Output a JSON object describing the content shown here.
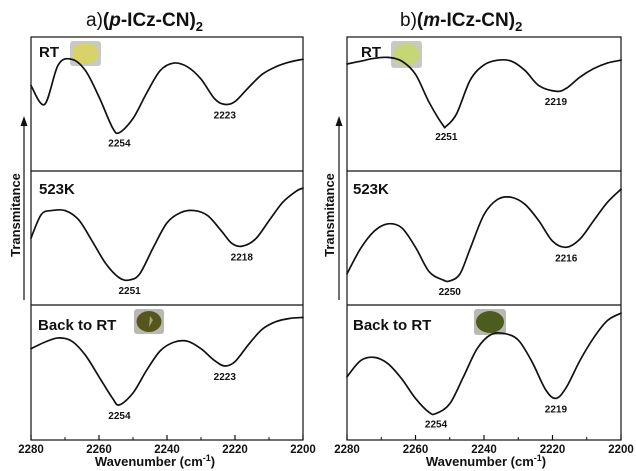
{
  "panels": [
    {
      "letter": "a)",
      "title_prefix": "(",
      "title_italic": "p",
      "title_main": "-ICz-CN)",
      "title_sub": "2"
    },
    {
      "letter": "b)",
      "title_prefix": "(",
      "title_italic": "m",
      "title_main": "-ICz-CN)",
      "title_sub": "2"
    }
  ],
  "y_axis_label": "Transmitance",
  "x_axis_label_main": "Wavenumber (cm",
  "x_axis_label_sup": "-1",
  "x_axis_label_close": ")",
  "photo_colors": {
    "p_RT": "#d9d26a",
    "m_RT": "#c4d676",
    "p_back": "#55561e",
    "m_back": "#4d5b1e"
  },
  "chart_data": [
    {
      "type": "line",
      "title": "a)(p-ICz-CN)2",
      "xlabel": "Wavenumber (cm-1)",
      "ylabel": "Transmitance",
      "xlim": [
        2280,
        2200
      ],
      "x_ticks": [
        2280,
        2260,
        2240,
        2220,
        2200
      ],
      "grid": false,
      "series": [
        {
          "name": "RT",
          "x": [
            2280,
            2276,
            2272,
            2268,
            2264,
            2260,
            2256,
            2254,
            2250,
            2246,
            2242,
            2238,
            2234,
            2230,
            2226,
            2223,
            2220,
            2216,
            2212,
            2208,
            2204,
            2200
          ],
          "y": [
            0.6,
            0.4,
            0.82,
            0.88,
            0.76,
            0.48,
            0.15,
            0.1,
            0.25,
            0.52,
            0.76,
            0.84,
            0.8,
            0.67,
            0.46,
            0.4,
            0.43,
            0.58,
            0.72,
            0.8,
            0.85,
            0.88
          ],
          "peak_labels": [
            {
              "x": 2254,
              "text": "2254"
            },
            {
              "x": 2223,
              "text": "2223"
            }
          ]
        },
        {
          "name": "523K",
          "x": [
            2280,
            2277,
            2274,
            2270,
            2266,
            2262,
            2258,
            2254,
            2251,
            2248,
            2244,
            2240,
            2236,
            2232,
            2228,
            2224,
            2221,
            2218,
            2214,
            2210,
            2206,
            2202,
            2200
          ],
          "y": [
            0.45,
            0.68,
            0.72,
            0.72,
            0.63,
            0.42,
            0.2,
            0.06,
            0.04,
            0.1,
            0.36,
            0.6,
            0.7,
            0.72,
            0.67,
            0.52,
            0.4,
            0.37,
            0.44,
            0.62,
            0.8,
            0.91,
            0.94
          ]
        },
        {
          "name": "Back to RT",
          "x": [
            2280,
            2276,
            2272,
            2268,
            2264,
            2260,
            2256,
            2254,
            2250,
            2246,
            2242,
            2238,
            2234,
            2230,
            2226,
            2223,
            2220,
            2216,
            2212,
            2208,
            2204,
            2200
          ],
          "y": [
            0.66,
            0.72,
            0.76,
            0.73,
            0.6,
            0.4,
            0.2,
            0.14,
            0.25,
            0.46,
            0.64,
            0.72,
            0.73,
            0.66,
            0.55,
            0.5,
            0.54,
            0.7,
            0.84,
            0.91,
            0.94,
            0.95
          ],
          "peak_labels": [
            {
              "x": 2254,
              "text": "2254"
            },
            {
              "x": 2223,
              "text": "2223"
            }
          ]
        }
      ],
      "series_peaks_523K": [
        {
          "x": 2251,
          "text": "2251"
        },
        {
          "x": 2218,
          "text": "2218"
        }
      ]
    },
    {
      "type": "line",
      "title": "b)(m-ICz-CN)2",
      "xlabel": "Wavenumber (cm-1)",
      "ylabel": "Transmitance",
      "xlim": [
        2280,
        2200
      ],
      "x_ticks": [
        2280,
        2260,
        2240,
        2220,
        2200
      ],
      "grid": false,
      "series": [
        {
          "name": "RT",
          "x": [
            2280,
            2276,
            2272,
            2268,
            2264,
            2260,
            2256,
            2252,
            2251,
            2248,
            2244,
            2240,
            2236,
            2232,
            2228,
            2224,
            2219,
            2216,
            2212,
            2208,
            2204,
            2200
          ],
          "y": [
            0.83,
            0.86,
            0.89,
            0.9,
            0.86,
            0.72,
            0.42,
            0.18,
            0.17,
            0.3,
            0.66,
            0.82,
            0.87,
            0.86,
            0.76,
            0.6,
            0.54,
            0.57,
            0.69,
            0.78,
            0.84,
            0.87
          ],
          "peak_labels": [
            {
              "x": 2251,
              "text": "2251"
            },
            {
              "x": 2219,
              "text": "2219"
            }
          ]
        },
        {
          "name": "523K",
          "x": [
            2280,
            2276,
            2272,
            2268,
            2264,
            2260,
            2256,
            2252,
            2250,
            2247,
            2244,
            2240,
            2236,
            2232,
            2228,
            2224,
            2220,
            2216,
            2212,
            2208,
            2204,
            2200
          ],
          "y": [
            0.1,
            0.35,
            0.52,
            0.59,
            0.55,
            0.36,
            0.12,
            0.04,
            0.03,
            0.1,
            0.35,
            0.68,
            0.83,
            0.85,
            0.78,
            0.62,
            0.42,
            0.36,
            0.44,
            0.62,
            0.8,
            0.93
          ],
          "peak_labels": [
            {
              "x": 2250,
              "text": "2250"
            },
            {
              "x": 2216,
              "text": "2216"
            }
          ]
        },
        {
          "name": "Back to RT",
          "x": [
            2280,
            2276,
            2272,
            2268,
            2264,
            2260,
            2256,
            2254,
            2250,
            2246,
            2242,
            2238,
            2234,
            2230,
            2226,
            2222,
            2219,
            2216,
            2212,
            2208,
            2204,
            2200
          ],
          "y": [
            0.4,
            0.55,
            0.58,
            0.52,
            0.38,
            0.2,
            0.07,
            0.06,
            0.15,
            0.4,
            0.66,
            0.79,
            0.8,
            0.74,
            0.54,
            0.28,
            0.2,
            0.3,
            0.55,
            0.76,
            0.92,
            0.99
          ],
          "peak_labels": [
            {
              "x": 2254,
              "text": "2254"
            },
            {
              "x": 2219,
              "text": "2219"
            }
          ]
        }
      ]
    }
  ]
}
